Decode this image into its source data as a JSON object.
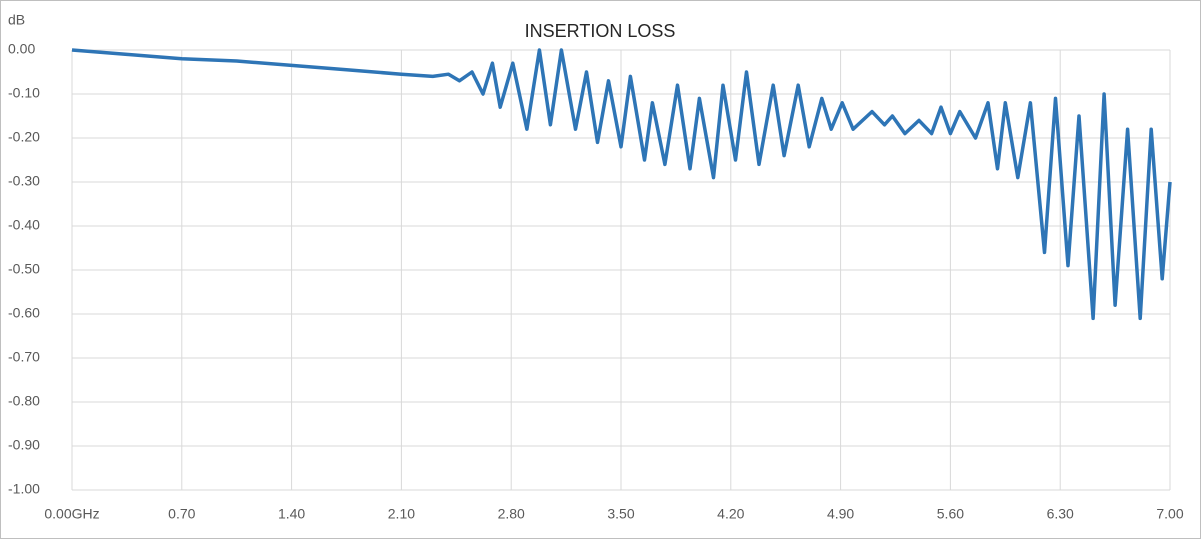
{
  "chart_data": {
    "type": "line",
    "title": "INSERTION LOSS",
    "y_label": "dB",
    "x": [
      0,
      0.35,
      0.7,
      1.05,
      1.4,
      1.75,
      2.1,
      2.3,
      2.4,
      2.47,
      2.55,
      2.62,
      2.68,
      2.73,
      2.81,
      2.9,
      2.98,
      3.05,
      3.12,
      3.21,
      3.28,
      3.35,
      3.42,
      3.5,
      3.56,
      3.65,
      3.7,
      3.78,
      3.86,
      3.94,
      4.0,
      4.09,
      4.15,
      4.23,
      4.3,
      4.38,
      4.47,
      4.54,
      4.63,
      4.7,
      4.78,
      4.84,
      4.91,
      4.98,
      5.1,
      5.18,
      5.23,
      5.31,
      5.4,
      5.48,
      5.54,
      5.6,
      5.66,
      5.76,
      5.84,
      5.9,
      5.95,
      6.03,
      6.11,
      6.2,
      6.27,
      6.35,
      6.42,
      6.51,
      6.58,
      6.65,
      6.73,
      6.81,
      6.88,
      6.95,
      7.0
    ],
    "values": [
      0,
      -0.01,
      -0.02,
      -0.025,
      -0.035,
      -0.045,
      -0.055,
      -0.06,
      -0.055,
      -0.07,
      -0.05,
      -0.1,
      -0.03,
      -0.13,
      -0.03,
      -0.18,
      0,
      -0.17,
      0,
      -0.18,
      -0.05,
      -0.21,
      -0.07,
      -0.22,
      -0.06,
      -0.25,
      -0.12,
      -0.26,
      -0.08,
      -0.27,
      -0.11,
      -0.29,
      -0.08,
      -0.25,
      -0.05,
      -0.26,
      -0.08,
      -0.24,
      -0.08,
      -0.22,
      -0.11,
      -0.18,
      -0.12,
      -0.18,
      -0.14,
      -0.17,
      -0.15,
      -0.19,
      -0.16,
      -0.19,
      -0.13,
      -0.19,
      -0.14,
      -0.2,
      -0.12,
      -0.27,
      -0.12,
      -0.29,
      -0.12,
      -0.46,
      -0.11,
      -0.49,
      -0.15,
      -0.61,
      -0.1,
      -0.58,
      -0.18,
      -0.61,
      -0.18,
      -0.52,
      -0.3
    ],
    "color": "#2e75b6",
    "grid": true,
    "xlim": [
      0,
      7
    ],
    "xticks": [
      {
        "value": 0,
        "label": "0.00GHz"
      },
      {
        "value": 0.7,
        "label": "0.70"
      },
      {
        "value": 1.4,
        "label": "1.40"
      },
      {
        "value": 2.1,
        "label": "2.10"
      },
      {
        "value": 2.8,
        "label": "2.80"
      },
      {
        "value": 3.5,
        "label": "3.50"
      },
      {
        "value": 4.2,
        "label": "4.20"
      },
      {
        "value": 4.9,
        "label": "4.90"
      },
      {
        "value": 5.6,
        "label": "5.60"
      },
      {
        "value": 6.3,
        "label": "6.30"
      },
      {
        "value": 7,
        "label": "7.00"
      }
    ],
    "ylim": [
      -1,
      0
    ],
    "yticks": [
      {
        "value": 0,
        "label": "0.00"
      },
      {
        "value": -0.1,
        "label": "-0.10"
      },
      {
        "value": -0.2,
        "label": "-0.20"
      },
      {
        "value": -0.3,
        "label": "-0.30"
      },
      {
        "value": -0.4,
        "label": "-0.40"
      },
      {
        "value": -0.5,
        "label": "-0.50"
      },
      {
        "value": -0.6,
        "label": "-0.60"
      },
      {
        "value": -0.7,
        "label": "-0.70"
      },
      {
        "value": -0.8,
        "label": "-0.80"
      },
      {
        "value": -0.9,
        "label": "-0.90"
      },
      {
        "value": -1,
        "label": "-1.00"
      }
    ]
  }
}
